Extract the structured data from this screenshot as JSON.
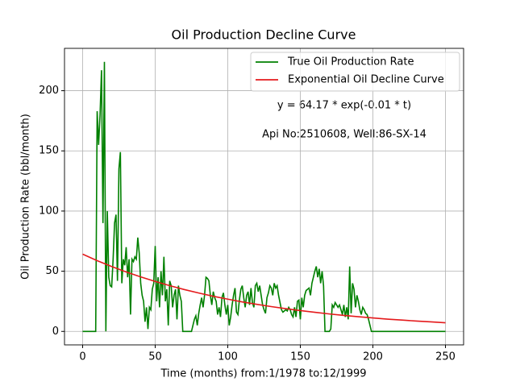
{
  "chart_data": {
    "type": "line",
    "title": "Oil Production Decline Curve",
    "xlabel": "Time (months) from:1/1978 to:12/1999",
    "ylabel": "Oil Production Rate (bbl/month)",
    "annotations": [
      "y = 64.17 * exp(-0.01 * t)",
      "Api No:2510608, Well:86-SX-14"
    ],
    "xlim": [
      -12.5,
      262.5
    ],
    "ylim": [
      -11.2,
      235.2
    ],
    "xticks": [
      0,
      50,
      100,
      150,
      200,
      250
    ],
    "yticks": [
      0,
      50,
      100,
      150,
      200
    ],
    "grid": true,
    "legend": "upper right",
    "series": [
      {
        "name": "True Oil Production Rate",
        "color": "#008000",
        "x": [
          0,
          1,
          2,
          3,
          4,
          5,
          6,
          7,
          8,
          9,
          10,
          11,
          12,
          13,
          14,
          15,
          16,
          17,
          18,
          19,
          20,
          21,
          22,
          23,
          24,
          25,
          26,
          27,
          28,
          29,
          30,
          31,
          32,
          33,
          34,
          35,
          36,
          37,
          38,
          39,
          40,
          41,
          42,
          43,
          44,
          45,
          46,
          47,
          48,
          49,
          50,
          51,
          52,
          53,
          54,
          55,
          56,
          57,
          58,
          59,
          60,
          61,
          62,
          63,
          64,
          65,
          66,
          67,
          68,
          69,
          70,
          71,
          72,
          73,
          74,
          75,
          76,
          77,
          78,
          79,
          80,
          81,
          82,
          83,
          84,
          85,
          86,
          87,
          88,
          89,
          90,
          91,
          92,
          93,
          94,
          95,
          96,
          97,
          98,
          99,
          100,
          101,
          102,
          103,
          104,
          105,
          106,
          107,
          108,
          109,
          110,
          111,
          112,
          113,
          114,
          115,
          116,
          117,
          118,
          119,
          120,
          121,
          122,
          123,
          124,
          125,
          126,
          127,
          128,
          129,
          130,
          131,
          132,
          133,
          134,
          135,
          136,
          137,
          138,
          139,
          140,
          141,
          142,
          143,
          144,
          145,
          146,
          147,
          148,
          149,
          150,
          151,
          152,
          153,
          154,
          155,
          156,
          157,
          158,
          159,
          160,
          161,
          162,
          163,
          164,
          165,
          166,
          167,
          168,
          169,
          170,
          171,
          172,
          173,
          174,
          175,
          176,
          177,
          178,
          179,
          180,
          181,
          182,
          183,
          184,
          185,
          186,
          187,
          188,
          189,
          190,
          191,
          192,
          193,
          194,
          195,
          196,
          197,
          198,
          199,
          200,
          201,
          202,
          203,
          204,
          205,
          206,
          207,
          208,
          209,
          210,
          211,
          212,
          213,
          214,
          215,
          216,
          217,
          218,
          219,
          220,
          221,
          222,
          223,
          224,
          225,
          226,
          227,
          228,
          229,
          230,
          231,
          232,
          233,
          234,
          235,
          236,
          237,
          238,
          239,
          240,
          241,
          242,
          243,
          244,
          245,
          246,
          247,
          248,
          249,
          250
        ],
        "values": [
          0,
          0,
          0,
          0,
          0,
          0,
          0,
          0,
          0,
          0,
          183,
          155,
          180,
          217,
          90,
          224,
          0,
          100,
          45,
          38,
          37,
          60,
          90,
          97,
          42,
          135,
          149,
          40,
          60,
          55,
          70,
          45,
          60,
          14,
          60,
          58,
          62,
          60,
          78,
          65,
          40,
          30,
          25,
          8,
          20,
          2,
          20,
          18,
          35,
          40,
          71,
          25,
          45,
          20,
          50,
          30,
          62,
          25,
          35,
          5,
          42,
          38,
          20,
          30,
          35,
          10,
          38,
          30,
          25,
          0,
          0,
          0,
          0,
          0,
          0,
          0,
          5,
          10,
          13,
          5,
          15,
          22,
          28,
          20,
          30,
          45,
          44,
          42,
          30,
          22,
          33,
          28,
          25,
          14,
          20,
          12,
          28,
          32,
          22,
          14,
          22,
          5,
          12,
          22,
          30,
          36,
          16,
          14,
          26,
          35,
          38,
          28,
          20,
          30,
          33,
          22,
          36,
          24,
          20,
          38,
          40,
          33,
          38,
          30,
          22,
          18,
          15,
          28,
          32,
          38,
          36,
          30,
          40,
          36,
          38,
          30,
          24,
          18,
          16,
          17,
          18,
          17,
          20,
          18,
          14,
          12,
          20,
          12,
          25,
          26,
          10,
          28,
          20,
          30,
          34,
          35,
          36,
          30,
          40,
          45,
          50,
          54,
          45,
          52,
          40,
          50,
          38,
          0,
          0,
          0,
          0,
          2,
          22,
          20,
          24,
          22,
          20,
          22,
          18,
          14,
          22,
          12,
          20,
          10,
          54,
          15,
          40,
          35,
          20,
          30,
          25,
          18,
          14,
          20,
          18,
          15,
          14,
          10,
          5,
          0,
          0,
          0,
          0,
          0,
          0,
          0,
          0,
          0,
          0,
          0,
          0,
          0,
          0,
          0,
          0,
          0,
          0,
          0,
          0,
          0,
          0,
          0,
          0,
          0,
          0,
          0,
          0,
          0,
          0,
          0,
          0,
          0,
          0,
          0,
          0,
          0,
          0,
          0,
          0,
          0,
          0,
          0,
          0,
          0,
          0,
          0,
          0,
          0,
          0,
          0,
          0
        ]
      },
      {
        "name": "Exponential Oil Decline Curve",
        "color": "#e41a1c",
        "x": [
          0,
          10,
          20,
          30,
          40,
          50,
          60,
          70,
          80,
          90,
          100,
          110,
          120,
          130,
          140,
          150,
          160,
          170,
          180,
          190,
          200,
          210,
          220,
          230,
          240,
          250
        ],
        "values": [
          64.2,
          58.8,
          53.9,
          49.4,
          45.3,
          41.5,
          38.0,
          34.8,
          31.9,
          29.2,
          26.8,
          24.5,
          22.5,
          20.6,
          18.9,
          17.3,
          15.9,
          14.5,
          13.3,
          12.2,
          11.2,
          10.2,
          9.4,
          8.6,
          7.9,
          7.2
        ]
      }
    ]
  }
}
